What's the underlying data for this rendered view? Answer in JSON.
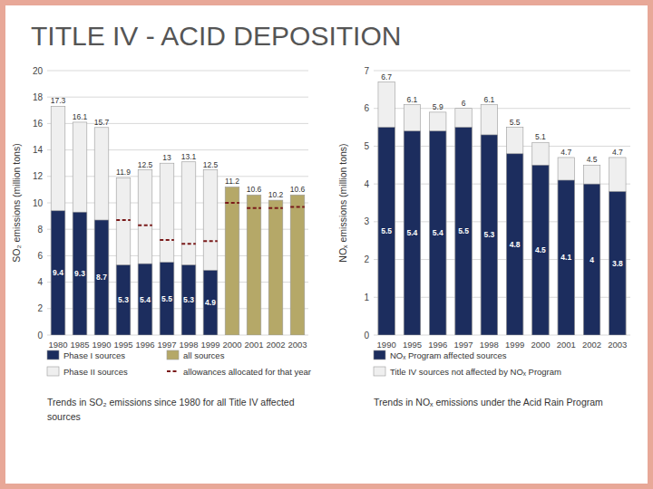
{
  "title": "TITLE IV - ACID DEPOSITION",
  "chart_data": [
    {
      "type": "bar",
      "categories": [
        "1980",
        "1985",
        "1990",
        "1995",
        "1996",
        "1997",
        "1998",
        "1999",
        "2000",
        "2001",
        "2002",
        "2003"
      ],
      "ylabel": "SO₂ emissions (million tons)",
      "ylim": [
        0,
        20
      ],
      "yticks": [
        0,
        2,
        4,
        6,
        8,
        10,
        12,
        14,
        16,
        18,
        20
      ],
      "grid": true,
      "annotations": [
        "Trends in SO₂ emissions since 1980 for all Title IV affected",
        "sources"
      ],
      "series": [
        {
          "name": "Phase I sources",
          "color": "#1c2d5e",
          "data_labels": true,
          "values": [
            9.4,
            9.3,
            8.7,
            5.3,
            5.4,
            5.5,
            5.3,
            4.9,
            null,
            null,
            null,
            null
          ]
        },
        {
          "name": "Phase II sources",
          "color": "#efefef",
          "data_labels": true,
          "values": [
            17.3,
            16.1,
            15.7,
            11.9,
            12.5,
            13.0,
            13.1,
            12.5,
            null,
            null,
            null,
            null
          ]
        },
        {
          "name": "all sources",
          "color": "#b5a868",
          "data_labels": true,
          "values": [
            null,
            null,
            null,
            null,
            null,
            null,
            null,
            null,
            11.2,
            10.6,
            10.2,
            10.6
          ]
        },
        {
          "name": "allowances allocated for that year",
          "type": "hline",
          "line_style": "dashed",
          "color": "#7a1a1a",
          "data_labels": false,
          "values": [
            null,
            null,
            null,
            8.7,
            8.3,
            7.2,
            6.9,
            7.1,
            10.0,
            9.6,
            9.6,
            9.7
          ]
        }
      ]
    },
    {
      "type": "bar",
      "categories": [
        "1990",
        "1995",
        "1996",
        "1997",
        "1998",
        "1999",
        "2000",
        "2001",
        "2002",
        "2003"
      ],
      "ylabel": "NOₓ emissions (million tons)",
      "ylim": [
        0,
        7
      ],
      "yticks": [
        0,
        1,
        2,
        3,
        4,
        5,
        6,
        7
      ],
      "grid": true,
      "annotations": [
        "Trends in NOₓ emissions under the Acid Rain Program"
      ],
      "series": [
        {
          "name": "NOₓ Program affected sources",
          "color": "#1c2d5e",
          "data_labels": true,
          "values": [
            5.5,
            5.4,
            5.4,
            5.5,
            5.3,
            4.8,
            4.5,
            4.1,
            4.0,
            3.8
          ]
        },
        {
          "name": "Title IV sources not affected by NOₓ Program",
          "color": "#efefef",
          "data_labels": true,
          "values": [
            6.7,
            6.1,
            5.9,
            6.0,
            6.1,
            5.5,
            5.1,
            4.7,
            4.5,
            4.7
          ]
        }
      ]
    }
  ]
}
